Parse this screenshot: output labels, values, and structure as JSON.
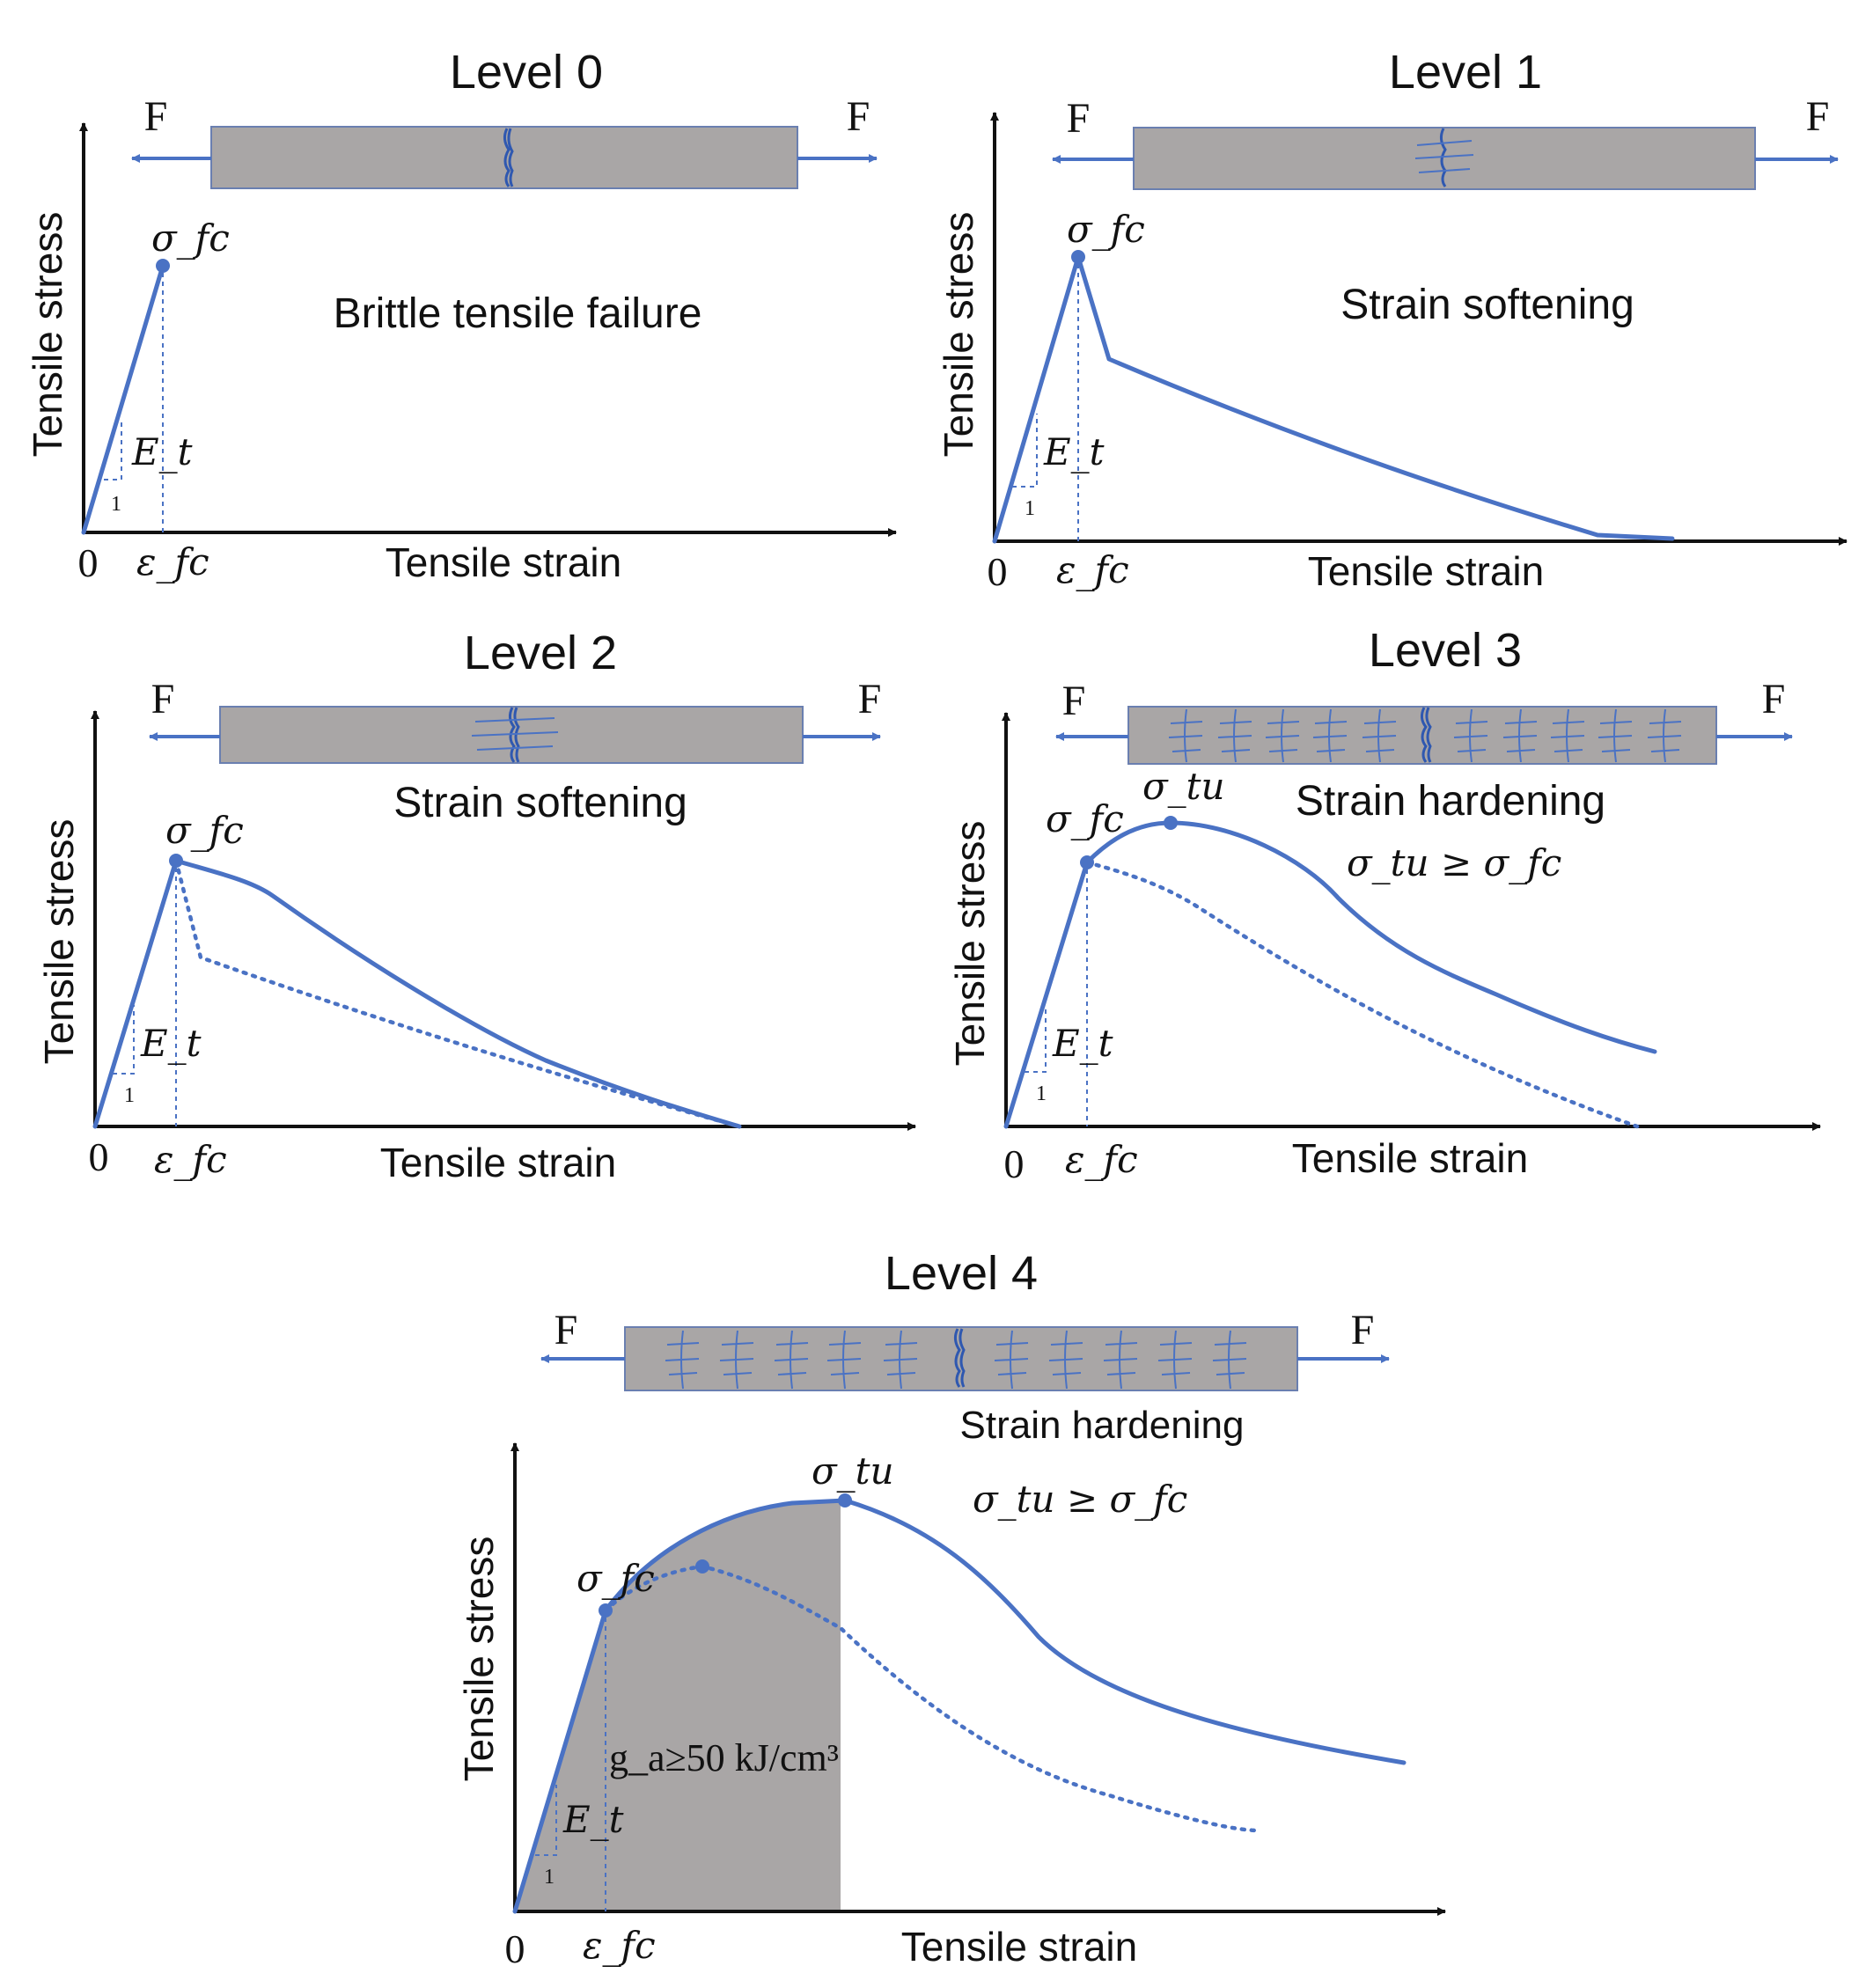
{
  "colors": {
    "curve": "#4a72c4",
    "specimen": "#a9a6a6",
    "axis": "#111111"
  },
  "common": {
    "force_label": "F",
    "y_axis_label": "Tensile stress",
    "x_axis_label": "Tensile strain",
    "origin_label": "0",
    "modulus_label": "E_t",
    "slope_label": "1",
    "first_crack_stress": "σ_fc",
    "first_crack_strain": "ε_fc",
    "ultimate_stress": "σ_tu"
  },
  "panels": [
    {
      "title": "Level 0",
      "mode": "Brittle tensile failure"
    },
    {
      "title": "Level 1",
      "mode": "Strain softening"
    },
    {
      "title": "Level 2",
      "mode": "Strain softening"
    },
    {
      "title": "Level 3",
      "mode": "Strain hardening",
      "condition": "σ_tu ≥ σ_fc"
    },
    {
      "title": "Level 4",
      "mode": "Strain hardening",
      "condition": "σ_tu ≥ σ_fc",
      "energy_label": "g_a≥50 kJ/cm³"
    }
  ]
}
